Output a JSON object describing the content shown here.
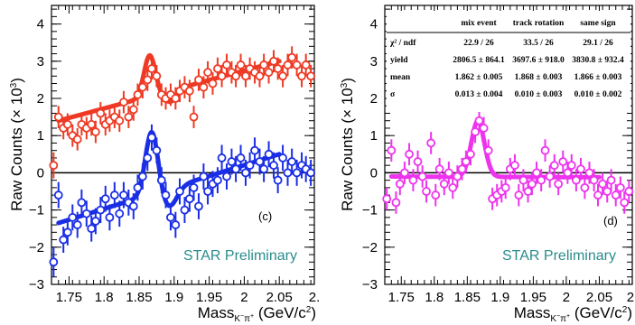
{
  "figure": {
    "ylabel": "Raw Counts (× 10",
    "ylabel_exp": "3",
    "ylabel_close": ")",
    "xlabel": "Mass",
    "xlabel_sub": "K",
    "xlabel_sub2": "−",
    "xlabel_sub3": "π",
    "xlabel_sub4": "+",
    "xlabel_units": " (GeV/c",
    "xlabel_units_exp": "2",
    "xlabel_units_close": ")"
  },
  "chart_data": [
    {
      "type": "scatter",
      "panel_label": "(c)",
      "annotation": "STAR Preliminary",
      "xlim": [
        1.725,
        2.1
      ],
      "ylim": [
        -3,
        4.5
      ],
      "xticks": [
        1.75,
        1.8,
        1.85,
        1.9,
        1.95,
        2,
        2.05,
        2.1
      ],
      "xtick_labels": [
        "1.75",
        "1.8",
        "1.85",
        "1.9",
        "1.95",
        "2",
        "2.05",
        "2."
      ],
      "yticks": [
        -3,
        -2,
        -1,
        0,
        1,
        2,
        3,
        4
      ],
      "ytick_labels": [
        "−3",
        "−2",
        "−1",
        "0",
        "1",
        "2",
        "3",
        "4"
      ],
      "zero_line": true,
      "series": [
        {
          "color": "#ee3a24",
          "points": [
            [
              1.728,
              0.2,
              0.35
            ],
            [
              1.735,
              1.5,
              0.3
            ],
            [
              1.742,
              1.2,
              0.3
            ],
            [
              1.748,
              1.3,
              0.3
            ],
            [
              1.755,
              1.0,
              0.3
            ],
            [
              1.762,
              0.9,
              0.3
            ],
            [
              1.768,
              1.3,
              0.3
            ],
            [
              1.775,
              1.2,
              0.3
            ],
            [
              1.782,
              1.3,
              0.3
            ],
            [
              1.788,
              1.1,
              0.3
            ],
            [
              1.795,
              1.6,
              0.3
            ],
            [
              1.802,
              1.3,
              0.3
            ],
            [
              1.808,
              1.4,
              0.3
            ],
            [
              1.815,
              1.5,
              0.3
            ],
            [
              1.822,
              1.4,
              0.3
            ],
            [
              1.828,
              1.9,
              0.3
            ],
            [
              1.835,
              1.5,
              0.3
            ],
            [
              1.842,
              1.7,
              0.3
            ],
            [
              1.848,
              2.1,
              0.3
            ],
            [
              1.855,
              2.3,
              0.3
            ],
            [
              1.862,
              2.5,
              0.3
            ],
            [
              1.868,
              2.8,
              0.3
            ],
            [
              1.875,
              2.6,
              0.3
            ],
            [
              1.882,
              2.1,
              0.3
            ],
            [
              1.888,
              2.0,
              0.3
            ],
            [
              1.895,
              2.1,
              0.3
            ],
            [
              1.902,
              2.0,
              0.3
            ],
            [
              1.908,
              2.2,
              0.3
            ],
            [
              1.915,
              2.3,
              0.3
            ],
            [
              1.922,
              2.2,
              0.3
            ],
            [
              1.928,
              1.5,
              0.3
            ],
            [
              1.935,
              2.5,
              0.3
            ],
            [
              1.942,
              2.3,
              0.3
            ],
            [
              1.948,
              2.7,
              0.3
            ],
            [
              1.955,
              2.4,
              0.3
            ],
            [
              1.962,
              2.8,
              0.3
            ],
            [
              1.968,
              2.6,
              0.3
            ],
            [
              1.975,
              2.9,
              0.3
            ],
            [
              1.982,
              2.7,
              0.3
            ],
            [
              1.988,
              2.6,
              0.3
            ],
            [
              1.995,
              2.9,
              0.3
            ],
            [
              2.002,
              2.6,
              0.3
            ],
            [
              2.008,
              2.8,
              0.3
            ],
            [
              2.015,
              2.7,
              0.3
            ],
            [
              2.022,
              2.6,
              0.3
            ],
            [
              2.028,
              2.9,
              0.3
            ],
            [
              2.035,
              2.7,
              0.3
            ],
            [
              2.042,
              3.0,
              0.3
            ],
            [
              2.048,
              2.8,
              0.3
            ],
            [
              2.055,
              2.6,
              0.3
            ],
            [
              2.062,
              2.9,
              0.3
            ],
            [
              2.068,
              3.1,
              0.3
            ],
            [
              2.075,
              2.9,
              0.3
            ],
            [
              2.082,
              2.6,
              0.3
            ],
            [
              2.088,
              2.9,
              0.3
            ],
            [
              2.095,
              2.6,
              0.3
            ]
          ],
          "fit": {
            "a": 1.4,
            "b": 3.0,
            "x0": 1.735,
            "x1": 2.05,
            "amp": 1.1,
            "mean": 1.865,
            "sigma": 0.008,
            "dip": -0.3,
            "dmean": 1.895,
            "dsig": 0.01
          }
        },
        {
          "color": "#1a2ee6",
          "points": [
            [
              1.728,
              -2.4,
              0.4
            ],
            [
              1.735,
              -0.6,
              0.35
            ],
            [
              1.742,
              -1.8,
              0.35
            ],
            [
              1.748,
              -1.6,
              0.35
            ],
            [
              1.755,
              -1.2,
              0.35
            ],
            [
              1.762,
              -1.4,
              0.35
            ],
            [
              1.768,
              -0.8,
              0.35
            ],
            [
              1.775,
              -1.1,
              0.35
            ],
            [
              1.782,
              -1.5,
              0.35
            ],
            [
              1.788,
              -1.3,
              0.35
            ],
            [
              1.795,
              -1.0,
              0.35
            ],
            [
              1.802,
              -0.7,
              0.35
            ],
            [
              1.808,
              -1.2,
              0.35
            ],
            [
              1.815,
              -0.6,
              0.35
            ],
            [
              1.822,
              -1.1,
              0.35
            ],
            [
              1.828,
              -0.6,
              0.35
            ],
            [
              1.835,
              -0.8,
              0.35
            ],
            [
              1.842,
              -0.9,
              0.35
            ],
            [
              1.848,
              -0.4,
              0.35
            ],
            [
              1.855,
              -0.1,
              0.35
            ],
            [
              1.862,
              0.4,
              0.35
            ],
            [
              1.868,
              0.95,
              0.35
            ],
            [
              1.875,
              0.6,
              0.35
            ],
            [
              1.882,
              -0.2,
              0.35
            ],
            [
              1.888,
              -0.6,
              0.35
            ],
            [
              1.895,
              -1.2,
              0.35
            ],
            [
              1.902,
              -1.4,
              0.35
            ],
            [
              1.908,
              -0.5,
              0.35
            ],
            [
              1.915,
              -1.0,
              0.35
            ],
            [
              1.922,
              -0.7,
              0.35
            ],
            [
              1.928,
              -0.4,
              0.35
            ],
            [
              1.935,
              -0.9,
              0.35
            ],
            [
              1.942,
              -0.1,
              0.35
            ],
            [
              1.948,
              -0.5,
              0.35
            ],
            [
              1.955,
              -0.3,
              0.35
            ],
            [
              1.962,
              -0.2,
              0.35
            ],
            [
              1.968,
              0.4,
              0.35
            ],
            [
              1.975,
              -0.1,
              0.35
            ],
            [
              1.982,
              0.3,
              0.35
            ],
            [
              1.988,
              0.1,
              0.35
            ],
            [
              1.995,
              0.4,
              0.35
            ],
            [
              2.002,
              0.0,
              0.35
            ],
            [
              2.008,
              0.2,
              0.35
            ],
            [
              2.015,
              0.6,
              0.35
            ],
            [
              2.022,
              0.3,
              0.35
            ],
            [
              2.028,
              0.1,
              0.35
            ],
            [
              2.035,
              0.5,
              0.35
            ],
            [
              2.042,
              0.2,
              0.35
            ],
            [
              2.048,
              -0.2,
              0.35
            ],
            [
              2.055,
              0.4,
              0.35
            ],
            [
              2.062,
              0.0,
              0.35
            ],
            [
              2.068,
              0.3,
              0.35
            ],
            [
              2.075,
              0.0,
              0.35
            ],
            [
              2.082,
              0.2,
              0.35
            ],
            [
              2.088,
              0.1,
              0.35
            ],
            [
              2.095,
              0.0,
              0.35
            ]
          ],
          "fit": {
            "a": -1.35,
            "b": 0.5,
            "x0": 1.735,
            "x1": 2.05,
            "amp": 1.7,
            "mean": 1.868,
            "sigma": 0.009,
            "dip": -0.5,
            "dmean": 1.893,
            "dsig": 0.011
          }
        }
      ]
    },
    {
      "type": "scatter",
      "panel_label": "(d)",
      "annotation": "STAR Preliminary",
      "xlim": [
        1.725,
        2.1
      ],
      "ylim": [
        -3,
        4.5
      ],
      "xticks": [
        1.75,
        1.8,
        1.85,
        1.9,
        1.95,
        2,
        2.05,
        2.1
      ],
      "xtick_labels": [
        "1.75",
        "1.8",
        "1.85",
        "1.9",
        "1.95",
        "2",
        "2.05",
        "2."
      ],
      "yticks": [
        -3,
        -2,
        -1,
        0,
        1,
        2,
        3,
        4
      ],
      "ytick_labels": [
        "−3",
        "−2",
        "−1",
        "0",
        "1",
        "2",
        "3",
        "4"
      ],
      "zero_line": true,
      "series": [
        {
          "color": "#ee33ee",
          "points": [
            [
              1.728,
              -0.7,
              0.3
            ],
            [
              1.735,
              0.6,
              0.3
            ],
            [
              1.742,
              -0.8,
              0.3
            ],
            [
              1.748,
              -0.3,
              0.3
            ],
            [
              1.755,
              0.0,
              0.3
            ],
            [
              1.762,
              0.5,
              0.3
            ],
            [
              1.768,
              -0.2,
              0.3
            ],
            [
              1.775,
              0.3,
              0.3
            ],
            [
              1.782,
              -0.1,
              0.3
            ],
            [
              1.788,
              -0.5,
              0.3
            ],
            [
              1.795,
              0.8,
              0.3
            ],
            [
              1.802,
              -0.6,
              0.3
            ],
            [
              1.808,
              0.1,
              0.3
            ],
            [
              1.815,
              -0.3,
              0.3
            ],
            [
              1.822,
              0.0,
              0.3
            ],
            [
              1.828,
              -0.4,
              0.3
            ],
            [
              1.835,
              -0.1,
              0.3
            ],
            [
              1.842,
              0.1,
              0.3
            ],
            [
              1.848,
              0.3,
              0.3
            ],
            [
              1.855,
              0.5,
              0.3
            ],
            [
              1.862,
              1.1,
              0.3
            ],
            [
              1.868,
              1.4,
              0.3
            ],
            [
              1.875,
              1.2,
              0.3
            ],
            [
              1.882,
              0.6,
              0.3
            ],
            [
              1.888,
              -0.7,
              0.3
            ],
            [
              1.895,
              -0.6,
              0.3
            ],
            [
              1.902,
              -0.5,
              0.3
            ],
            [
              1.908,
              -0.4,
              0.3
            ],
            [
              1.915,
              0.1,
              0.3
            ],
            [
              1.922,
              0.2,
              0.3
            ],
            [
              1.928,
              -0.6,
              0.3
            ],
            [
              1.935,
              -0.2,
              0.3
            ],
            [
              1.942,
              -0.5,
              0.3
            ],
            [
              1.948,
              -0.3,
              0.3
            ],
            [
              1.955,
              0.0,
              0.3
            ],
            [
              1.962,
              -0.2,
              0.3
            ],
            [
              1.968,
              0.6,
              0.3
            ],
            [
              1.975,
              -0.1,
              0.3
            ],
            [
              1.982,
              0.2,
              0.3
            ],
            [
              1.988,
              -0.3,
              0.3
            ],
            [
              1.995,
              0.3,
              0.3
            ],
            [
              2.002,
              0.0,
              0.3
            ],
            [
              2.008,
              0.2,
              0.3
            ],
            [
              2.015,
              -0.2,
              0.3
            ],
            [
              2.022,
              0.1,
              0.3
            ],
            [
              2.028,
              -0.4,
              0.3
            ],
            [
              2.035,
              0.0,
              0.3
            ],
            [
              2.042,
              -0.2,
              0.3
            ],
            [
              2.048,
              -0.6,
              0.3
            ],
            [
              2.055,
              -0.3,
              0.3
            ],
            [
              2.062,
              -0.5,
              0.3
            ],
            [
              2.068,
              -0.2,
              0.3
            ],
            [
              2.075,
              -0.6,
              0.3
            ],
            [
              2.082,
              -0.4,
              0.3
            ],
            [
              2.088,
              -0.8,
              0.3
            ],
            [
              2.095,
              -0.5,
              0.3
            ]
          ],
          "fit": {
            "a": -0.1,
            "b": -0.12,
            "x0": 1.735,
            "x1": 2.05,
            "amp": 1.5,
            "mean": 1.866,
            "sigma": 0.01,
            "dip": 0,
            "dmean": 1.9,
            "dsig": 0.01
          }
        }
      ],
      "fit_table": {
        "headers": [
          "",
          "mix event",
          "track rotation",
          "same sign"
        ],
        "rows": [
          [
            "χ² / ndf",
            "22.9 / 26",
            "33.5 / 26",
            "29.1 / 26"
          ],
          [
            "yield",
            "2806.5 ±  864.1",
            "3697.6 ±  918.0",
            "3830.8 ±  932.4"
          ],
          [
            "mean",
            "1.862 ± 0.005",
            "1.868 ± 0.003",
            "1.866 ± 0.003"
          ],
          [
            "σ",
            "0.013 ± 0.004",
            "0.010 ± 0.003",
            "0.010 ± 0.002"
          ]
        ]
      }
    }
  ]
}
